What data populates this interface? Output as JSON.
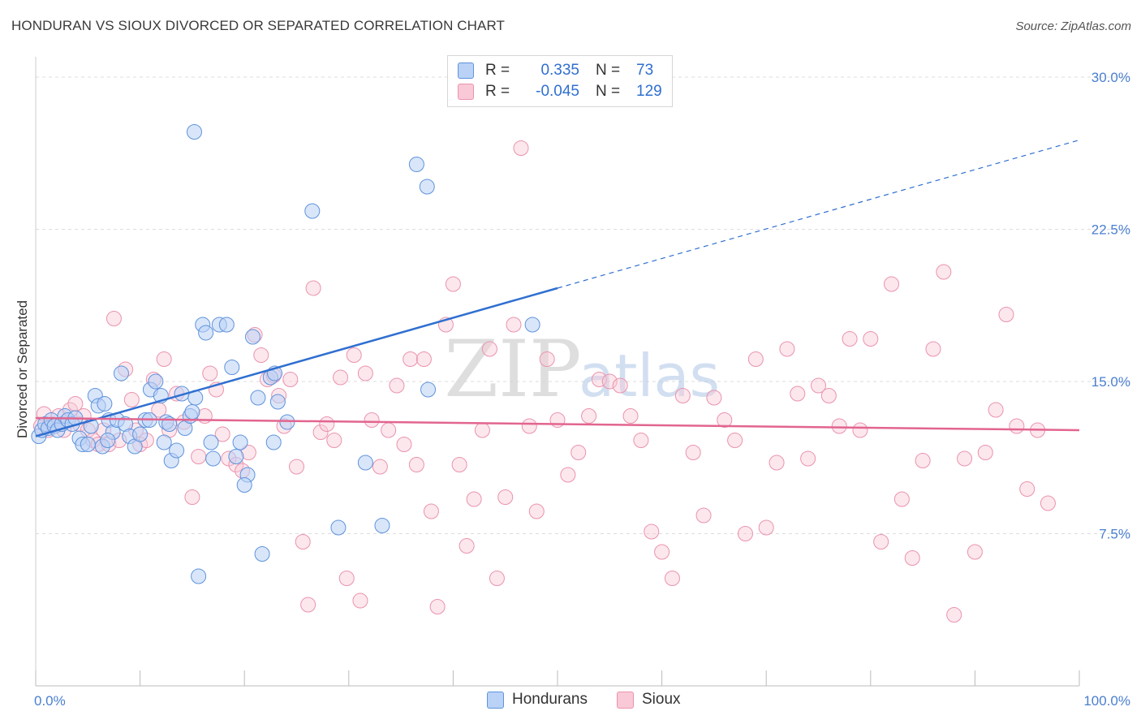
{
  "title": "HONDURAN VS SIOUX DIVORCED OR SEPARATED CORRELATION CHART",
  "source": "Source: ZipAtlas.com",
  "watermark": {
    "zip": "ZIP",
    "atlas": "atlas"
  },
  "colors": {
    "hondurans_fill": "#b9d2f5",
    "hondurans_stroke": "#5f93dc",
    "hondurans_line": "#2f6fd0",
    "sioux_fill": "#f9c9d7",
    "sioux_stroke": "#ea93ad",
    "sioux_line": "#e2658f",
    "tick_text": "#4a7fd0",
    "grid": "#dddddd"
  },
  "legend": {
    "rows": [
      {
        "r_label": "R =",
        "r_value": "0.335",
        "n_label": "N =",
        "n_value": "73"
      },
      {
        "r_label": "R =",
        "r_value": "-0.045",
        "n_label": "N =",
        "n_value": "129"
      }
    ]
  },
  "bottom_legend": [
    "Hondurans",
    "Sioux"
  ],
  "chart_data": {
    "type": "scatter",
    "title": "HONDURAN VS SIOUX DIVORCED OR SEPARATED CORRELATION CHART",
    "xlabel": "",
    "ylabel": "Divorced or Separated",
    "xlim": [
      0,
      100
    ],
    "ylim": [
      0,
      31
    ],
    "x_tick_labels": [
      "0.0%",
      "100.0%"
    ],
    "y_ticks": [
      7.5,
      15.0,
      22.5,
      30.0
    ],
    "y_tick_labels": [
      "7.5%",
      "15.0%",
      "22.5%",
      "30.0%"
    ],
    "grid": true,
    "series": [
      {
        "name": "Hondurans",
        "r": 0.335,
        "n": 73,
        "trend": {
          "x0": 0,
          "y0": 12.3,
          "x1": 50,
          "y1": 19.6,
          "dash_x1": 100,
          "dash_y1": 26.9
        },
        "points": [
          [
            0.3,
            12.3
          ],
          [
            0.6,
            12.6
          ],
          [
            0.9,
            12.9
          ],
          [
            1.2,
            12.7
          ],
          [
            1.5,
            13.1
          ],
          [
            1.8,
            12.8
          ],
          [
            2.1,
            12.6
          ],
          [
            2.5,
            12.9
          ],
          [
            2.8,
            13.3
          ],
          [
            3.1,
            13.1
          ],
          [
            3.5,
            12.9
          ],
          [
            3.8,
            13.2
          ],
          [
            4.2,
            12.2
          ],
          [
            4.5,
            11.9
          ],
          [
            5.0,
            11.9
          ],
          [
            5.3,
            12.8
          ],
          [
            5.7,
            14.3
          ],
          [
            6.0,
            13.8
          ],
          [
            6.4,
            11.8
          ],
          [
            6.6,
            13.9
          ],
          [
            7.0,
            13.1
          ],
          [
            7.4,
            12.5
          ],
          [
            7.8,
            13.1
          ],
          [
            8.2,
            15.4
          ],
          [
            8.6,
            12.9
          ],
          [
            9.0,
            12.3
          ],
          [
            9.5,
            11.8
          ],
          [
            10.0,
            12.4
          ],
          [
            10.5,
            13.1
          ],
          [
            11.0,
            14.6
          ],
          [
            11.5,
            15.0
          ],
          [
            12.0,
            14.3
          ],
          [
            12.5,
            13.0
          ],
          [
            12.8,
            12.9
          ],
          [
            13.0,
            11.1
          ],
          [
            13.5,
            11.6
          ],
          [
            14.0,
            14.4
          ],
          [
            14.3,
            12.7
          ],
          [
            14.8,
            13.3
          ],
          [
            15.0,
            13.5
          ],
          [
            15.3,
            14.2
          ],
          [
            16.0,
            17.8
          ],
          [
            16.3,
            17.4
          ],
          [
            16.8,
            12.0
          ],
          [
            17.0,
            11.2
          ],
          [
            17.6,
            17.8
          ],
          [
            18.3,
            17.8
          ],
          [
            18.8,
            15.7
          ],
          [
            19.2,
            11.3
          ],
          [
            19.6,
            12.0
          ],
          [
            20.3,
            10.4
          ],
          [
            20.8,
            17.2
          ],
          [
            21.3,
            14.2
          ],
          [
            21.7,
            6.5
          ],
          [
            22.5,
            15.2
          ],
          [
            22.8,
            12.0
          ],
          [
            23.2,
            14.0
          ],
          [
            20.0,
            9.9
          ],
          [
            15.6,
            5.4
          ],
          [
            29.0,
            7.8
          ],
          [
            31.6,
            11.0
          ],
          [
            33.2,
            7.9
          ],
          [
            36.5,
            25.7
          ],
          [
            37.5,
            24.6
          ],
          [
            37.6,
            14.6
          ],
          [
            26.5,
            23.4
          ],
          [
            47.6,
            17.8
          ],
          [
            15.2,
            27.3
          ],
          [
            22.9,
            15.4
          ],
          [
            24.1,
            13.0
          ],
          [
            12.3,
            12.0
          ],
          [
            6.9,
            12.1
          ],
          [
            10.9,
            13.1
          ]
        ]
      },
      {
        "name": "Sioux",
        "r": -0.045,
        "n": 129,
        "trend": {
          "x0": 0,
          "y0": 13.2,
          "x1": 100,
          "y1": 12.6
        },
        "points": [
          [
            0.5,
            12.8
          ],
          [
            0.8,
            13.4
          ],
          [
            1.2,
            12.6
          ],
          [
            1.6,
            12.9
          ],
          [
            2.2,
            13.3
          ],
          [
            2.7,
            12.6
          ],
          [
            3.3,
            13.6
          ],
          [
            3.8,
            13.9
          ],
          [
            4.2,
            12.9
          ],
          [
            4.6,
            13.3
          ],
          [
            5.0,
            12.6
          ],
          [
            5.5,
            12.1
          ],
          [
            6.0,
            11.9
          ],
          [
            6.5,
            12.6
          ],
          [
            7.0,
            11.9
          ],
          [
            7.5,
            18.1
          ],
          [
            8.0,
            12.1
          ],
          [
            8.6,
            15.6
          ],
          [
            9.2,
            14.1
          ],
          [
            9.6,
            12.6
          ],
          [
            10.0,
            11.9
          ],
          [
            10.6,
            12.1
          ],
          [
            11.3,
            15.1
          ],
          [
            11.8,
            13.6
          ],
          [
            12.3,
            16.1
          ],
          [
            12.8,
            12.6
          ],
          [
            13.5,
            14.4
          ],
          [
            14.2,
            13.0
          ],
          [
            15.0,
            9.3
          ],
          [
            15.6,
            11.3
          ],
          [
            16.2,
            13.3
          ],
          [
            16.7,
            15.4
          ],
          [
            17.3,
            14.6
          ],
          [
            17.9,
            12.4
          ],
          [
            18.5,
            11.2
          ],
          [
            19.2,
            10.9
          ],
          [
            19.8,
            10.6
          ],
          [
            20.4,
            11.5
          ],
          [
            21.0,
            17.3
          ],
          [
            21.6,
            16.3
          ],
          [
            22.2,
            15.1
          ],
          [
            22.8,
            15.3
          ],
          [
            23.3,
            14.3
          ],
          [
            23.8,
            12.8
          ],
          [
            24.4,
            15.1
          ],
          [
            25.0,
            10.8
          ],
          [
            25.6,
            7.1
          ],
          [
            26.1,
            4.0
          ],
          [
            26.6,
            19.6
          ],
          [
            27.3,
            12.5
          ],
          [
            27.9,
            12.9
          ],
          [
            28.6,
            12.1
          ],
          [
            29.2,
            15.2
          ],
          [
            29.8,
            5.3
          ],
          [
            30.5,
            16.3
          ],
          [
            31.1,
            4.2
          ],
          [
            31.6,
            15.4
          ],
          [
            32.2,
            13.1
          ],
          [
            33.0,
            10.8
          ],
          [
            33.8,
            12.6
          ],
          [
            34.6,
            14.8
          ],
          [
            35.3,
            11.9
          ],
          [
            35.9,
            16.1
          ],
          [
            36.5,
            10.9
          ],
          [
            37.2,
            16.1
          ],
          [
            37.9,
            8.6
          ],
          [
            38.5,
            3.9
          ],
          [
            39.3,
            17.8
          ],
          [
            40.0,
            19.8
          ],
          [
            40.6,
            10.9
          ],
          [
            41.3,
            6.9
          ],
          [
            42.0,
            9.2
          ],
          [
            42.8,
            12.6
          ],
          [
            43.5,
            16.6
          ],
          [
            44.2,
            5.3
          ],
          [
            45.0,
            9.3
          ],
          [
            45.8,
            17.8
          ],
          [
            46.5,
            26.5
          ],
          [
            47.3,
            12.8
          ],
          [
            48.0,
            8.6
          ],
          [
            49.0,
            16.1
          ],
          [
            50.0,
            13.1
          ],
          [
            51.0,
            10.4
          ],
          [
            52.0,
            11.5
          ],
          [
            53.0,
            13.3
          ],
          [
            54.0,
            15.1
          ],
          [
            55.0,
            15.0
          ],
          [
            56.0,
            14.8
          ],
          [
            57.0,
            13.3
          ],
          [
            58.0,
            12.1
          ],
          [
            59.0,
            7.6
          ],
          [
            60.0,
            6.6
          ],
          [
            61.0,
            5.3
          ],
          [
            62.0,
            14.3
          ],
          [
            63.0,
            11.5
          ],
          [
            64.0,
            8.4
          ],
          [
            65.0,
            14.2
          ],
          [
            66.0,
            13.1
          ],
          [
            67.0,
            12.1
          ],
          [
            68.0,
            7.5
          ],
          [
            69.0,
            16.1
          ],
          [
            70.0,
            7.8
          ],
          [
            71.0,
            11.0
          ],
          [
            72.0,
            16.6
          ],
          [
            73.0,
            14.4
          ],
          [
            74.0,
            11.2
          ],
          [
            75.0,
            14.8
          ],
          [
            76.0,
            14.3
          ],
          [
            77.0,
            12.8
          ],
          [
            78.0,
            17.1
          ],
          [
            79.0,
            12.6
          ],
          [
            80.0,
            17.1
          ],
          [
            81.0,
            7.1
          ],
          [
            82.0,
            19.8
          ],
          [
            83.0,
            9.2
          ],
          [
            84.0,
            6.3
          ],
          [
            85.0,
            11.1
          ],
          [
            86.0,
            16.6
          ],
          [
            87.0,
            20.4
          ],
          [
            88.0,
            3.5
          ],
          [
            89.0,
            11.2
          ],
          [
            90.0,
            6.6
          ],
          [
            91.0,
            11.5
          ],
          [
            92.0,
            13.6
          ],
          [
            93.0,
            18.3
          ],
          [
            94.0,
            12.8
          ],
          [
            95.0,
            9.7
          ],
          [
            96.0,
            12.6
          ],
          [
            97.0,
            9.0
          ]
        ]
      }
    ]
  }
}
